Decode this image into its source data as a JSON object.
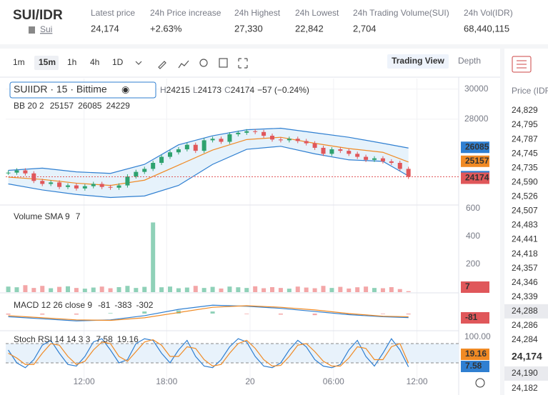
{
  "header": {
    "pair": "SUI/IDR",
    "coin": "Sui",
    "stats": [
      {
        "label": "Latest price",
        "value": "24,174"
      },
      {
        "label": "24h Price increase",
        "value": "+2.63%"
      },
      {
        "label": "24h Highest",
        "value": "27,330"
      },
      {
        "label": "24h Lowest",
        "value": "22,842"
      },
      {
        "label": "24h Trading Volume(SUI)",
        "value": "2,704"
      },
      {
        "label": "24h Vol(IDR)",
        "value": "68,440,115"
      }
    ]
  },
  "toolbar": {
    "intervals": [
      "1m",
      "15m",
      "1h",
      "4h",
      "1D"
    ],
    "active": 1,
    "views": [
      "Trading View",
      "Depth"
    ]
  },
  "chart": {
    "xlim": [
      -0.3,
      52.9
    ],
    "xticks": [
      {
        "value": 8.9,
        "label": "12:00"
      },
      {
        "value": 18.6,
        "label": "18:00"
      },
      {
        "value": 28.4,
        "label": "20"
      },
      {
        "value": 38.2,
        "label": "06:00"
      },
      {
        "value": 48,
        "label": "12:00"
      }
    ],
    "price": {
      "symbol": "SUIIDR · 15 · Bittime",
      "ohlc": [
        {
          "label": "H",
          "value": "24215"
        },
        {
          "label": "L",
          "value": "24173"
        },
        {
          "label": "C",
          "value": "24174"
        }
      ],
      "change": "−57 (−0.24%)",
      "ylim": [
        22300,
        30700
      ],
      "yticks": [
        28000,
        30000
      ],
      "closes": [
        24450,
        24600,
        24400,
        23900,
        23700,
        23800,
        23500,
        23600,
        23400,
        23550,
        23700,
        23500,
        23450,
        23600,
        24200,
        24500,
        24700,
        25100,
        25500,
        25800,
        26000,
        26300,
        25900,
        26600,
        26700,
        26500,
        27000,
        27100,
        27200,
        27150,
        26900,
        26650,
        26600,
        26700,
        26550,
        26400,
        26100,
        25700,
        26000,
        25900,
        25700,
        25500,
        25300,
        25400,
        25200,
        25100,
        24700,
        24174
      ],
      "bb": {
        "label": "BB 20 2",
        "x": [
          0,
          4,
          8,
          12,
          16,
          20,
          24,
          28,
          32,
          36,
          40,
          44,
          47
        ],
        "upper": [
          24600,
          24750,
          24500,
          24400,
          25000,
          26300,
          26900,
          27300,
          27400,
          27100,
          26800,
          26400,
          26085
        ],
        "middle": [
          24150,
          24000,
          23750,
          23600,
          23950,
          24950,
          25950,
          26650,
          26800,
          26400,
          26050,
          25800,
          25157
        ],
        "lower": [
          23700,
          23300,
          23000,
          22800,
          22900,
          23600,
          25000,
          26000,
          26200,
          25700,
          25300,
          25200,
          24229
        ]
      }
    },
    "volume": {
      "label": "Volume SMA 9",
      "ylim": [
        0,
        620
      ],
      "yticks": [
        200,
        400,
        600
      ],
      "values": [
        40,
        35,
        50,
        30,
        45,
        28,
        38,
        42,
        30,
        25,
        33,
        40,
        28,
        36,
        45,
        30,
        38,
        500,
        35,
        40,
        28,
        33,
        45,
        30,
        38,
        26,
        40,
        35,
        30,
        42,
        28,
        36,
        30,
        25,
        40,
        33,
        28,
        45,
        30,
        38,
        26,
        35,
        40,
        30,
        28,
        36,
        22,
        7
      ]
    },
    "macd": {
      "label": "MACD 12 26 close 9",
      "ylim": [
        -1500,
        1500
      ],
      "x": [
        0,
        4,
        8,
        12,
        16,
        20,
        24,
        28,
        32,
        36,
        40,
        44,
        47
      ],
      "histogram": [
        -100,
        -100,
        -100,
        50,
        200,
        300,
        200,
        -50,
        -100,
        -150,
        -100,
        -50,
        -81
      ],
      "macd": [
        -300,
        -500,
        -700,
        -600,
        -200,
        400,
        800,
        700,
        500,
        200,
        -100,
        -300,
        -383
      ],
      "signal": [
        -200,
        -400,
        -600,
        -650,
        -400,
        100,
        600,
        750,
        600,
        350,
        0,
        -250,
        -302
      ]
    },
    "stoch": {
      "label": "Stoch RSI 14 14 3 3",
      "ylim": [
        0,
        100
      ],
      "yticks": [
        {
          "value": 100,
          "label": "100.00"
        }
      ],
      "levels": [
        20,
        80
      ],
      "k": [
        60,
        20,
        5,
        30,
        75,
        90,
        50,
        15,
        10,
        40,
        85,
        95,
        60,
        20,
        30,
        80,
        95,
        90,
        50,
        20,
        60,
        90,
        40,
        10,
        5,
        30,
        70,
        95,
        85,
        40,
        10,
        5,
        20,
        60,
        90,
        70,
        30,
        10,
        5,
        15,
        60,
        90,
        40,
        10,
        50,
        95,
        60,
        7.58
      ],
      "d": [
        50,
        35,
        15,
        15,
        50,
        80,
        75,
        40,
        15,
        25,
        60,
        85,
        80,
        40,
        25,
        55,
        85,
        92,
        75,
        40,
        40,
        70,
        65,
        30,
        10,
        15,
        50,
        80,
        90,
        65,
        30,
        10,
        12,
        40,
        75,
        80,
        55,
        25,
        10,
        10,
        35,
        70,
        65,
        30,
        30,
        70,
        80,
        19.16
      ]
    }
  },
  "orderbook": {
    "header": "Price (IDR",
    "asks": [
      "24,829",
      "24,795",
      "24,787",
      "24,745",
      "24,735",
      "24,590",
      "24,526",
      "24,507",
      "24,483",
      "24,441",
      "24,418",
      "24,357",
      "24,346",
      "24,339",
      "24,288",
      "24,286",
      "24,284"
    ],
    "highlight": 14,
    "last": "24,174",
    "bids": [
      "24,190",
      "24,182"
    ]
  }
}
